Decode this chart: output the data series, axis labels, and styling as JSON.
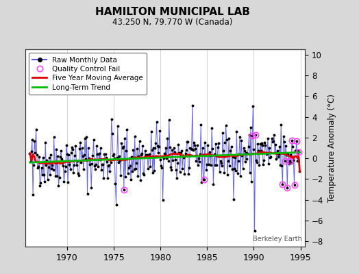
{
  "title": "HAMILTON MUNICIPAL LAB",
  "subtitle": "43.250 N, 79.770 W (Canada)",
  "ylabel": "Temperature Anomaly (°C)",
  "credit": "Berkeley Earth",
  "xlim": [
    1965.5,
    1995.5
  ],
  "ylim": [
    -8.5,
    10.5
  ],
  "yticks": [
    -8,
    -6,
    -4,
    -2,
    0,
    2,
    4,
    6,
    8,
    10
  ],
  "xticks": [
    1970,
    1975,
    1980,
    1985,
    1990,
    1995
  ],
  "bg_color": "#d8d8d8",
  "plot_bg_color": "#ffffff",
  "raw_color": "#5555dd",
  "dot_color": "#000000",
  "ma_color": "#dd0000",
  "trend_color": "#00bb00",
  "qc_color": "#ff44ff",
  "legend_labels": [
    "Raw Monthly Data",
    "Quality Control Fail",
    "Five Year Moving Average",
    "Long-Term Trend"
  ],
  "start_year": 1966,
  "end_year": 1994,
  "seed": 42
}
